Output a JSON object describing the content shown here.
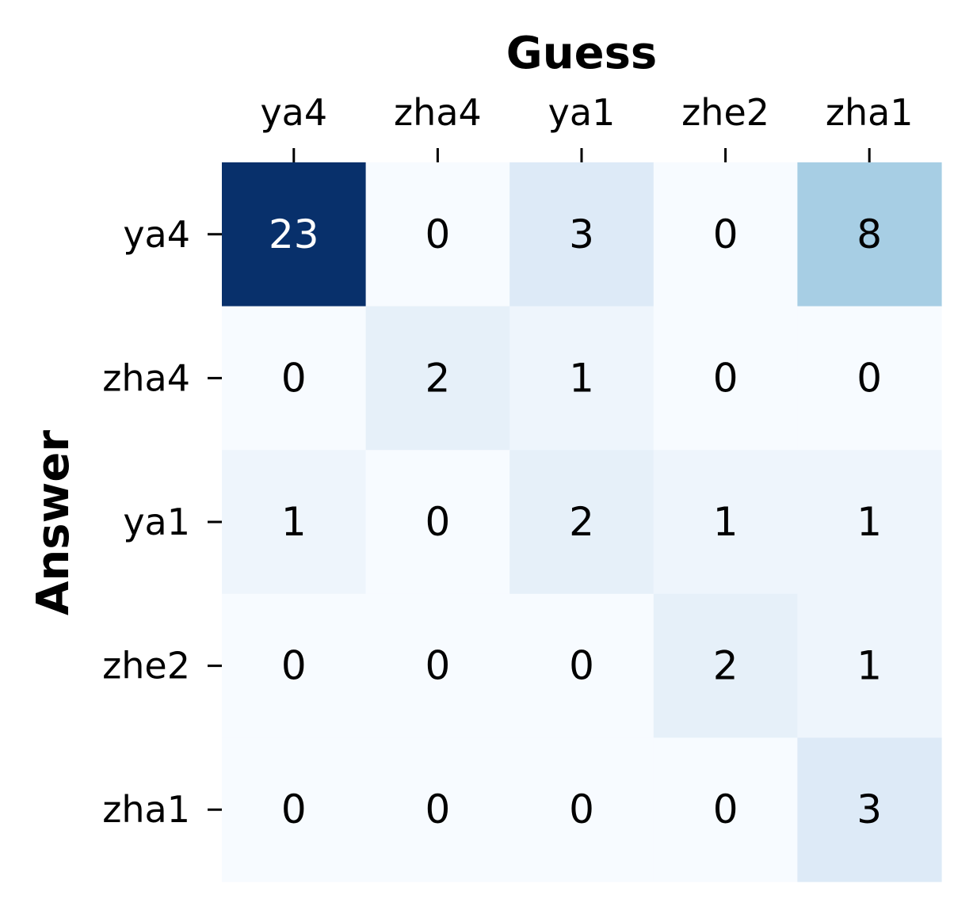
{
  "chart_data": {
    "type": "heatmap",
    "xlabel": "Guess",
    "ylabel": "Answer",
    "x_categories": [
      "ya4",
      "zha4",
      "ya1",
      "zhe2",
      "zha1"
    ],
    "y_categories": [
      "ya4",
      "zha4",
      "ya1",
      "zhe2",
      "zha1"
    ],
    "values": [
      [
        23,
        0,
        3,
        0,
        8
      ],
      [
        0,
        2,
        1,
        0,
        0
      ],
      [
        1,
        0,
        2,
        1,
        1
      ],
      [
        0,
        0,
        0,
        2,
        1
      ],
      [
        0,
        0,
        0,
        0,
        3
      ]
    ],
    "colormap": "Blues",
    "value_range": [
      0,
      23
    ],
    "x_axis_position": "top",
    "colorbar": false,
    "annotations": true,
    "grid": false
  }
}
